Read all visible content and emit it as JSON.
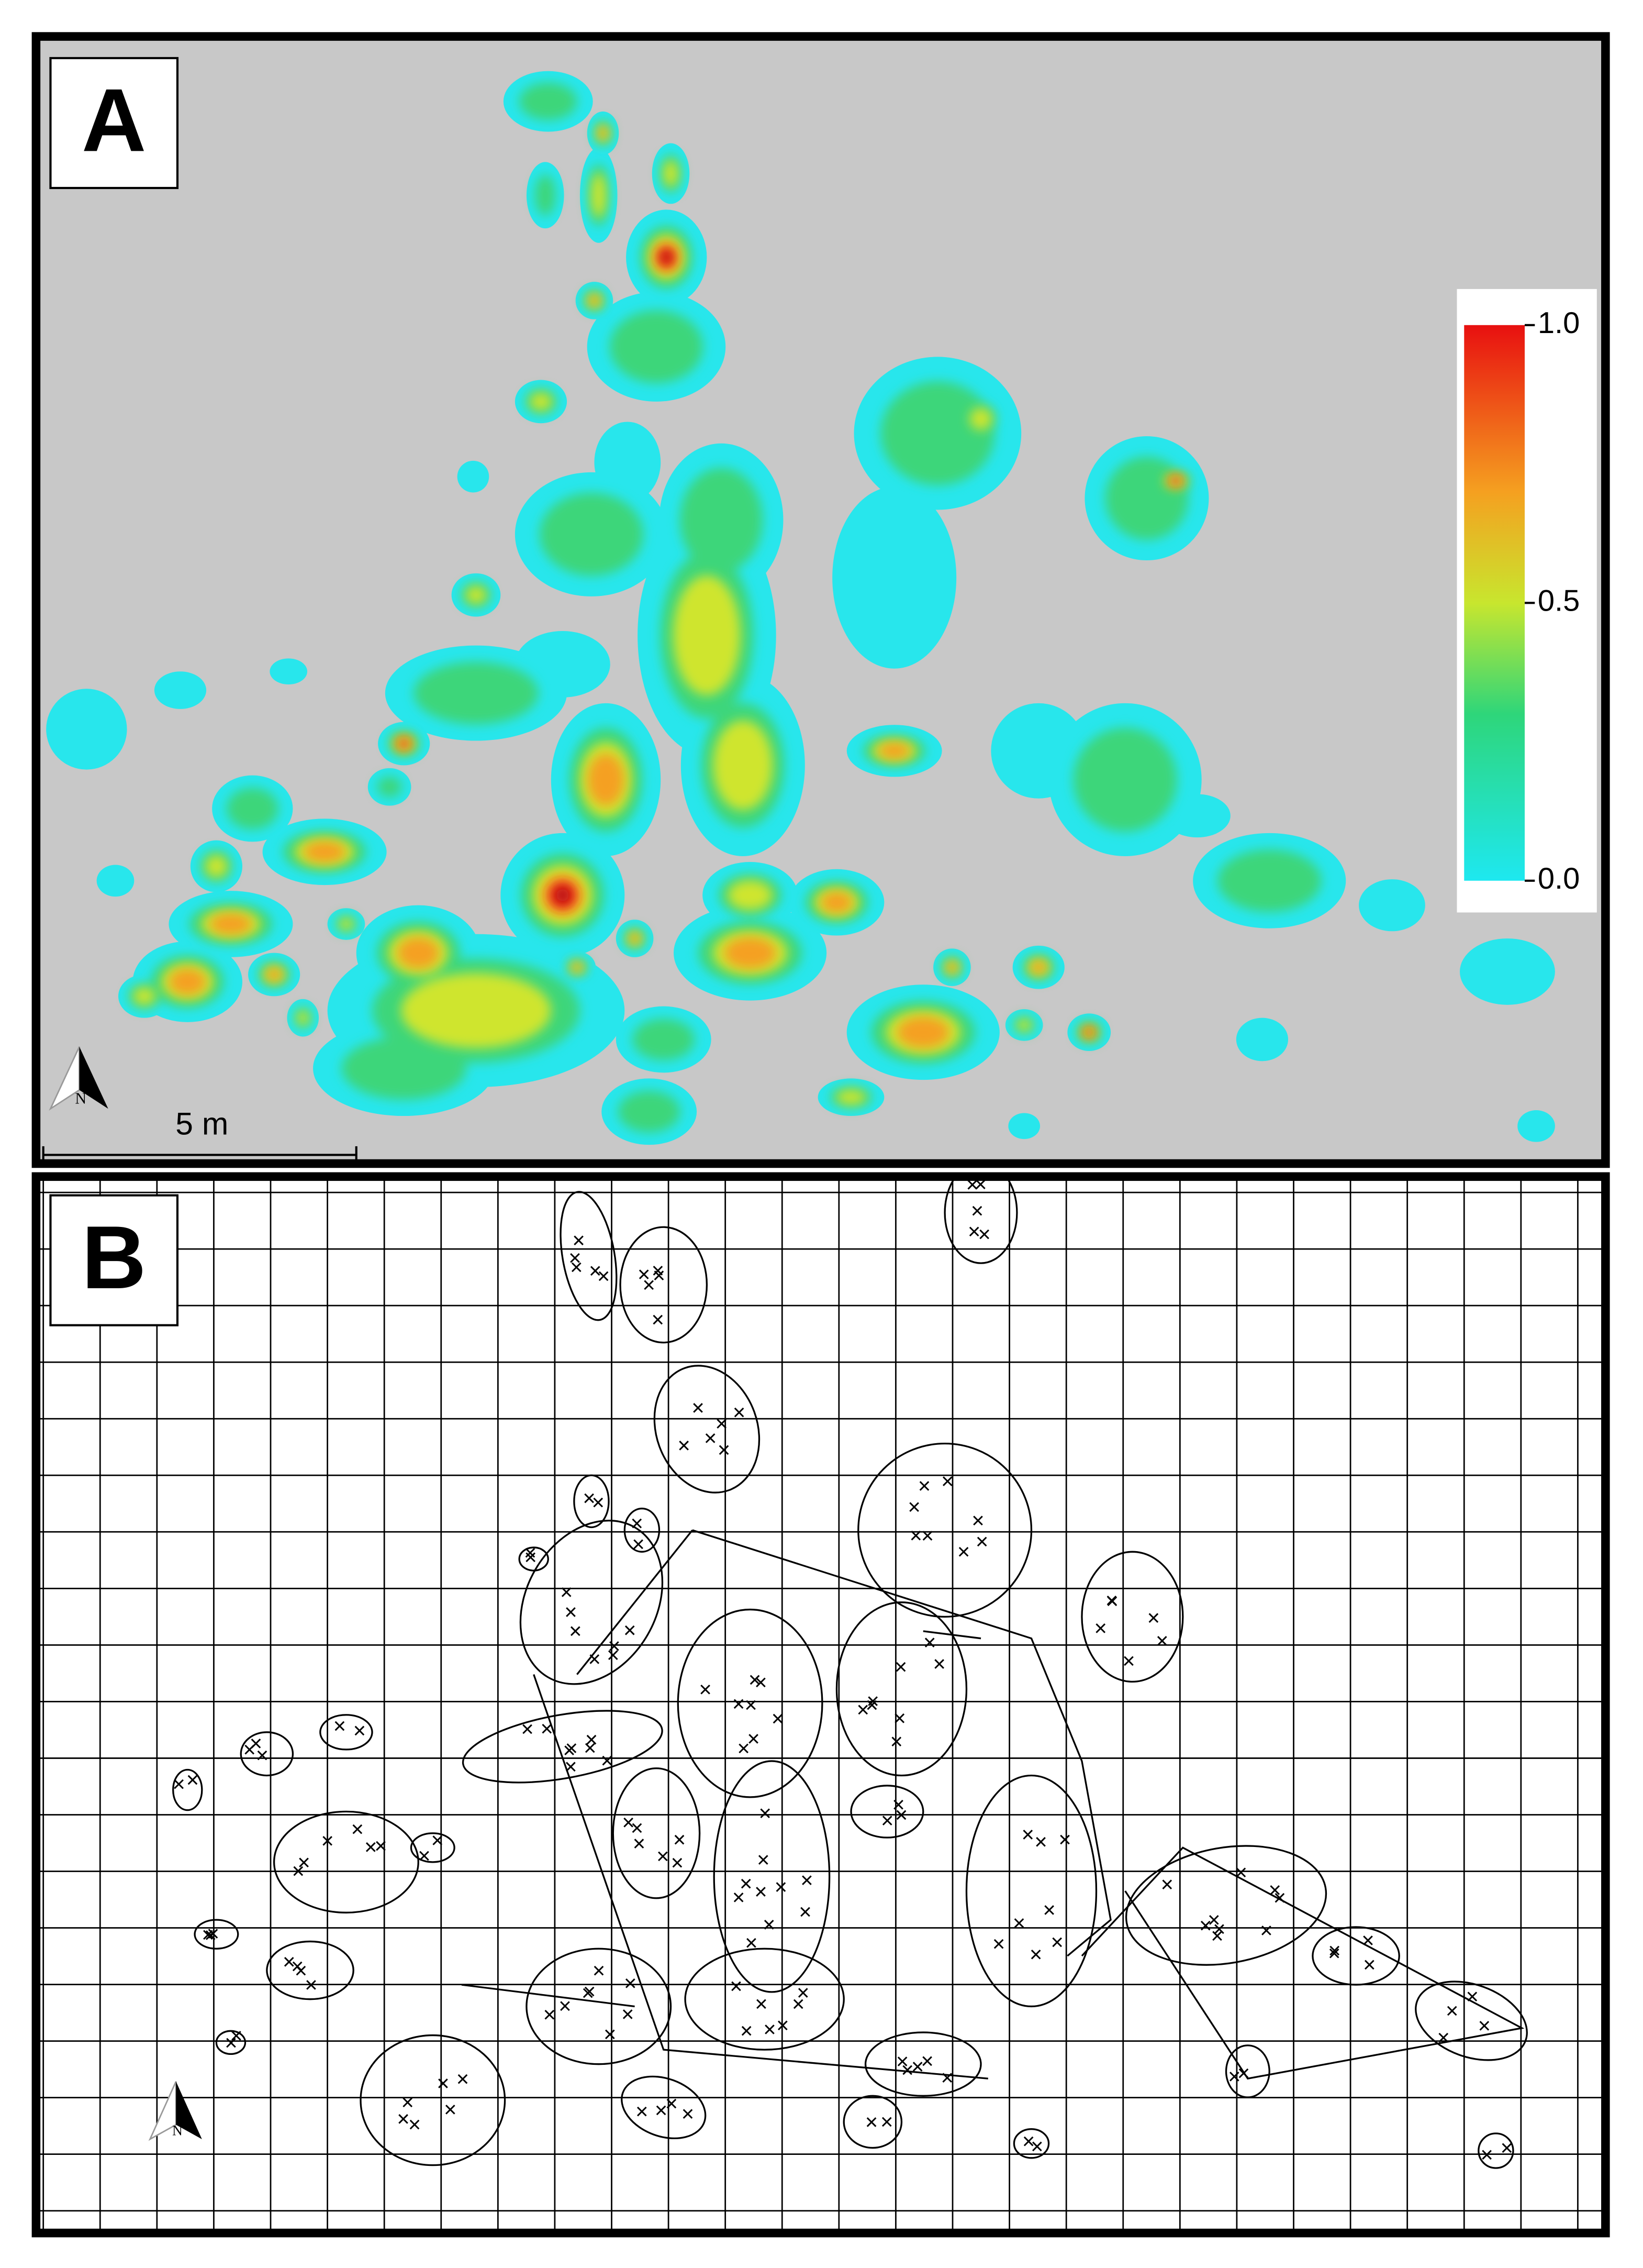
{
  "panels": [
    {
      "label": "A"
    },
    {
      "label": "B"
    }
  ],
  "colorbar": {
    "ticks": [
      {
        "value": 1,
        "label": "1.0"
      },
      {
        "value": 0.5,
        "label": "0.5"
      },
      {
        "value": 0,
        "label": "0.0"
      }
    ]
  },
  "scale_bar": {
    "label": "5 m"
  },
  "north_arrows": [
    {
      "label": "N"
    },
    {
      "label": "N"
    }
  ]
}
